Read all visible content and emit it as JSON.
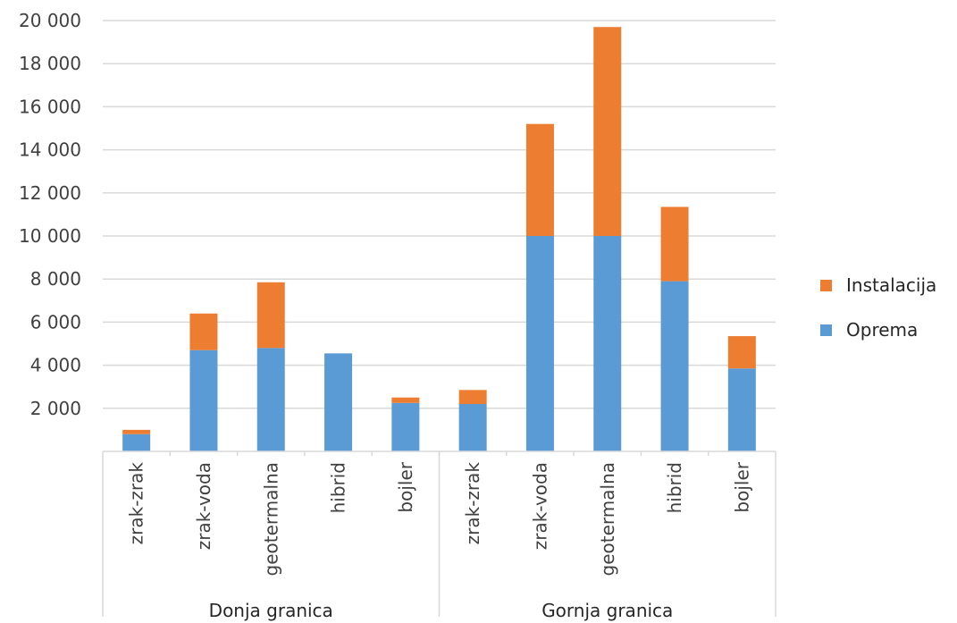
{
  "chart_data": {
    "type": "bar",
    "stacked": true,
    "categories": [
      "zrak-zrak",
      "zrak-voda",
      "geotermalna",
      "hibrid",
      "bojler",
      "zrak-zrak",
      "zrak-voda",
      "geotermalna",
      "hibrid",
      "bojler"
    ],
    "groups": [
      {
        "label": "Donja granica",
        "count": 5
      },
      {
        "label": "Gornja granica",
        "count": 5
      }
    ],
    "series": [
      {
        "name": "Oprema",
        "color": "#5B9BD5",
        "values": [
          800,
          4700,
          4800,
          4550,
          2250,
          2200,
          10000,
          10000,
          7900,
          3850
        ]
      },
      {
        "name": "Instalacija",
        "color": "#ED7D31",
        "values": [
          200,
          1700,
          3050,
          0,
          250,
          650,
          5200,
          9700,
          3450,
          1500
        ]
      }
    ],
    "ylim": [
      0,
      20000
    ],
    "yticks": [
      2000,
      4000,
      6000,
      8000,
      10000,
      12000,
      14000,
      16000,
      18000,
      20000
    ],
    "ytick_labels": [
      "2 000",
      "4 000",
      "6 000",
      "8 000",
      "10 000",
      "12 000",
      "14 000",
      "16 000",
      "18 000",
      "20 000"
    ],
    "grid": true,
    "legend_position": "right",
    "legend_order": [
      "Instalacija",
      "Oprema"
    ],
    "title": "",
    "xlabel": "",
    "ylabel": ""
  }
}
